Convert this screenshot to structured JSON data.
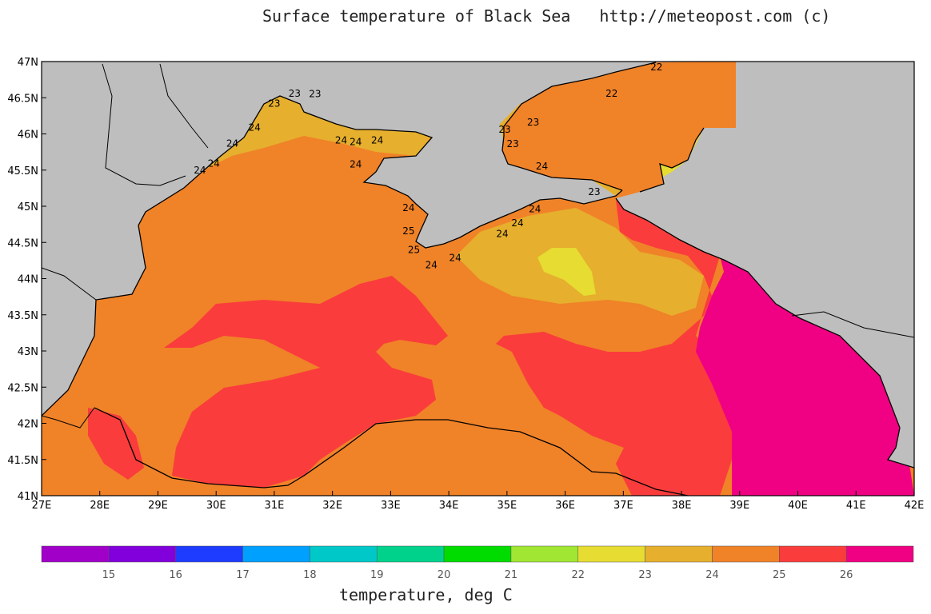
{
  "title": "Surface temperature of Black Sea   http://meteopost.com (c)",
  "map": {
    "lat_labels": [
      "47N",
      "46.5N",
      "46N",
      "45.5N",
      "45N",
      "44.5N",
      "44N",
      "43.5N",
      "43N",
      "42.5N",
      "42N",
      "41.5N",
      "41N"
    ],
    "lon_labels": [
      "27E",
      "28E",
      "29E",
      "30E",
      "31E",
      "32E",
      "33E",
      "34E",
      "35E",
      "36E",
      "37E",
      "38E",
      "39E",
      "40E",
      "41E",
      "42E"
    ],
    "lat_range": [
      41,
      47
    ],
    "lon_range": [
      27,
      42
    ],
    "land_color": "#bebebe",
    "coastline_color": "#000000",
    "stations": [
      {
        "lat": 46.92,
        "lon": 37.57,
        "value": "22"
      },
      {
        "lat": 46.56,
        "lon": 36.8,
        "value": "22"
      },
      {
        "lat": 46.16,
        "lon": 35.45,
        "value": "23"
      },
      {
        "lat": 46.06,
        "lon": 34.96,
        "value": "23"
      },
      {
        "lat": 45.86,
        "lon": 35.1,
        "value": "23"
      },
      {
        "lat": 45.55,
        "lon": 35.6,
        "value": "24"
      },
      {
        "lat": 45.2,
        "lon": 36.5,
        "value": "23"
      },
      {
        "lat": 46.56,
        "lon": 31.35,
        "value": "23"
      },
      {
        "lat": 46.55,
        "lon": 31.7,
        "value": "23"
      },
      {
        "lat": 46.42,
        "lon": 31.0,
        "value": "23"
      },
      {
        "lat": 46.09,
        "lon": 30.66,
        "value": "24"
      },
      {
        "lat": 45.87,
        "lon": 30.28,
        "value": "24"
      },
      {
        "lat": 45.59,
        "lon": 29.96,
        "value": "24"
      },
      {
        "lat": 45.5,
        "lon": 29.72,
        "value": "24"
      },
      {
        "lat": 45.91,
        "lon": 32.15,
        "value": "24"
      },
      {
        "lat": 45.89,
        "lon": 32.4,
        "value": "24"
      },
      {
        "lat": 45.91,
        "lon": 32.77,
        "value": "24"
      },
      {
        "lat": 45.58,
        "lon": 32.4,
        "value": "24"
      },
      {
        "lat": 44.98,
        "lon": 33.31,
        "value": "24"
      },
      {
        "lat": 44.66,
        "lon": 33.31,
        "value": "25"
      },
      {
        "lat": 44.4,
        "lon": 33.4,
        "value": "25"
      },
      {
        "lat": 44.19,
        "lon": 33.7,
        "value": "24"
      },
      {
        "lat": 44.29,
        "lon": 34.11,
        "value": "24"
      },
      {
        "lat": 44.62,
        "lon": 34.92,
        "value": "24"
      },
      {
        "lat": 44.77,
        "lon": 35.18,
        "value": "24"
      },
      {
        "lat": 44.96,
        "lon": 35.48,
        "value": "24"
      }
    ]
  },
  "legend": {
    "caption": "temperature, deg C",
    "colors": [
      "#a000c8",
      "#8200dc",
      "#1e3cff",
      "#00a0ff",
      "#00c8c8",
      "#00d28c",
      "#00dc00",
      "#a0e632",
      "#e6dc32",
      "#e6af2d",
      "#f08228",
      "#fa3c3c",
      "#f00082"
    ],
    "tick_labels": [
      "15",
      "16",
      "17",
      "18",
      "19",
      "20",
      "21",
      "22",
      "23",
      "24",
      "25",
      "26"
    ]
  }
}
